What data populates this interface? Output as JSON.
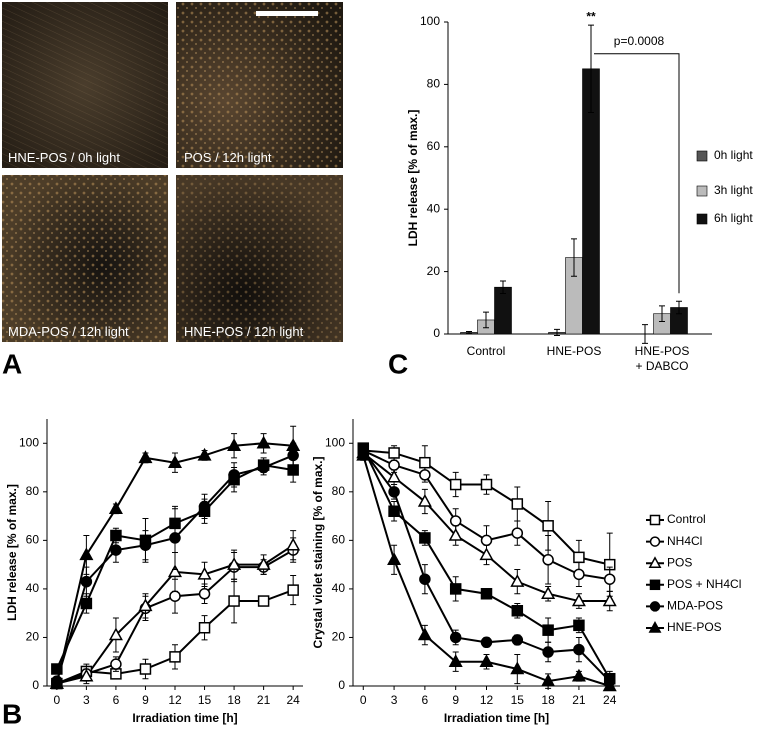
{
  "panel_labels": [
    "A",
    "B",
    "C"
  ],
  "micrographs": [
    {
      "label": "HNE-POS / 0h light"
    },
    {
      "label": "POS / 12h light"
    },
    {
      "label": "MDA-POS / 12h light"
    },
    {
      "label": "HNE-POS / 12h light"
    }
  ],
  "chart_data": [
    {
      "type": "bar",
      "y_label": "LDH release [% of max.]",
      "categories": [
        [
          "Control"
        ],
        [
          "HNE-POS"
        ],
        [
          "HNE-POS",
          "+ DABCO"
        ]
      ],
      "series": [
        {
          "name": "0h light",
          "color": "#555555",
          "values": [
            0.5,
            0.5,
            0
          ],
          "errors": [
            0.3,
            1,
            3
          ]
        },
        {
          "name": "3h light",
          "color": "#bbbbbb",
          "values": [
            4.5,
            24.5,
            6.5
          ],
          "errors": [
            2.5,
            6,
            2.5
          ]
        },
        {
          "name": "6h light",
          "color": "#111111",
          "values": [
            15,
            85,
            8.5
          ],
          "errors": [
            2,
            14,
            2
          ]
        }
      ],
      "annotations": [
        "**",
        "p=0.0008"
      ],
      "ylim": [
        0,
        100
      ],
      "yticks": [
        0,
        20,
        40,
        60,
        80,
        100
      ]
    },
    {
      "type": "line",
      "y_label": "LDH release [% of max.]",
      "x_label": "Irradiation time [h]",
      "x": [
        0,
        3,
        6,
        9,
        12,
        15,
        18,
        21,
        24
      ],
      "series": [
        {
          "name": "Control",
          "marker": "square",
          "filled": false,
          "color": "#000000",
          "values": [
            1,
            6,
            5,
            7,
            12,
            24,
            35,
            35,
            39.5
          ],
          "errors": [
            1,
            3,
            2,
            4,
            5,
            5,
            9,
            2,
            6
          ]
        },
        {
          "name": "NH4Cl",
          "marker": "circle",
          "filled": false,
          "color": "#000000",
          "values": [
            1,
            5,
            9,
            32,
            37,
            38,
            49,
            49,
            56
          ],
          "errors": [
            1,
            3,
            3,
            5,
            7,
            4,
            6,
            3,
            5
          ]
        },
        {
          "name": "POS",
          "marker": "triangle",
          "filled": false,
          "color": "#000000",
          "values": [
            1,
            4,
            21,
            33,
            47,
            46,
            50,
            50,
            58
          ],
          "errors": [
            1,
            3,
            7,
            5,
            8,
            5,
            6,
            4,
            6
          ]
        },
        {
          "name": "POS + NH4Cl",
          "marker": "square",
          "filled": true,
          "color": "#000000",
          "values": [
            7,
            34,
            62,
            60,
            67,
            72,
            85,
            91,
            89
          ],
          "errors": [
            1,
            4,
            3,
            9,
            6,
            5,
            5,
            3,
            5
          ]
        },
        {
          "name": "MDA-POS",
          "marker": "circle",
          "filled": true,
          "color": "#000000",
          "values": [
            2,
            43,
            56,
            58,
            61,
            74,
            87,
            90,
            95
          ],
          "errors": [
            1,
            6,
            5,
            6,
            13,
            5,
            5,
            3,
            5
          ]
        },
        {
          "name": "HNE-POS",
          "marker": "triangle",
          "filled": true,
          "color": "#000000",
          "values": [
            1,
            54,
            73,
            94,
            92,
            95,
            99,
            100,
            99
          ],
          "errors": [
            1,
            8,
            2,
            2,
            4,
            2,
            5,
            4,
            8
          ]
        }
      ],
      "xlim": [
        -1,
        25
      ],
      "xticks": [
        0,
        3,
        6,
        9,
        12,
        15,
        18,
        21,
        24
      ],
      "ylim": [
        0,
        110
      ],
      "yticks": [
        0,
        20,
        40,
        60,
        80,
        100
      ]
    },
    {
      "type": "line",
      "y_label": "Crystal violet staining [% of max.]",
      "x_label": "Irradiation time [h]",
      "x": [
        0,
        3,
        6,
        9,
        12,
        15,
        18,
        21,
        24
      ],
      "series": [
        {
          "name": "Control",
          "marker": "square",
          "filled": false,
          "color": "#000000",
          "values": [
            97,
            96,
            92,
            83,
            83,
            75,
            66,
            53,
            50
          ],
          "errors": [
            2,
            3,
            7,
            5,
            4,
            7,
            10,
            7,
            13
          ]
        },
        {
          "name": "NH4Cl",
          "marker": "circle",
          "filled": false,
          "color": "#000000",
          "values": [
            97,
            91,
            87,
            68,
            60,
            63,
            52,
            46,
            44
          ],
          "errors": [
            2,
            3,
            3,
            5,
            6,
            5,
            10,
            5,
            5
          ]
        },
        {
          "name": "POS",
          "marker": "triangle",
          "filled": false,
          "color": "#000000",
          "values": [
            96,
            86,
            76,
            62,
            54,
            43,
            38,
            35,
            35
          ],
          "errors": [
            2,
            3,
            5,
            4,
            4,
            5,
            3,
            3,
            4
          ]
        },
        {
          "name": "POS + NH4Cl",
          "marker": "square",
          "filled": true,
          "color": "#000000",
          "values": [
            98,
            72,
            61,
            40,
            38,
            31,
            23,
            25,
            3
          ],
          "errors": [
            2,
            4,
            3,
            5,
            2,
            3,
            5,
            3,
            3
          ]
        },
        {
          "name": "MDA-POS",
          "marker": "circle",
          "filled": true,
          "color": "#000000",
          "values": [
            97,
            80,
            44,
            20,
            18,
            19,
            14,
            15,
            2
          ],
          "errors": [
            2,
            3,
            6,
            3,
            2,
            2,
            4,
            5,
            2
          ]
        },
        {
          "name": "HNE-POS",
          "marker": "triangle",
          "filled": true,
          "color": "#000000",
          "values": [
            95,
            52,
            21,
            10,
            10,
            7,
            2,
            4,
            0
          ],
          "errors": [
            2,
            6,
            4,
            4,
            3,
            6,
            3,
            2,
            1
          ]
        }
      ],
      "xlim": [
        -1,
        25
      ],
      "xticks": [
        0,
        3,
        6,
        9,
        12,
        15,
        18,
        21,
        24
      ],
      "ylim": [
        0,
        110
      ],
      "yticks": [
        0,
        20,
        40,
        60,
        80,
        100
      ]
    }
  ]
}
